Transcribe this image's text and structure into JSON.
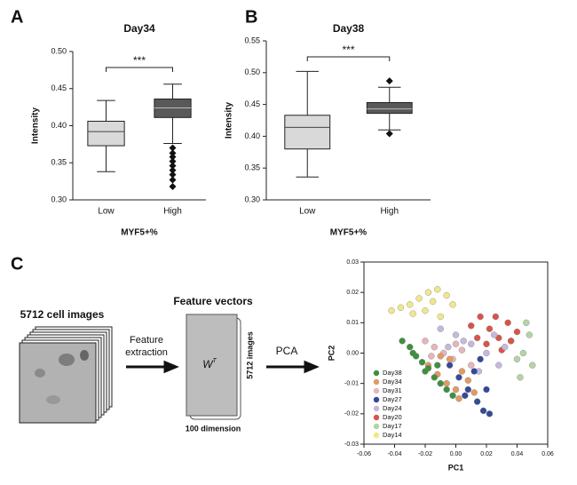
{
  "panels": [
    "A",
    "B",
    "C"
  ],
  "diagram": {
    "images_title": "5712 cell images",
    "arrow1": [
      "Feature",
      "extraction"
    ],
    "vectors_title": "Feature vectors",
    "matrix": [
      "W",
      "T"
    ],
    "side": "5712 images",
    "bottom": "100 dimension",
    "arrow2": "PCA"
  },
  "chart_data": [
    {
      "type": "box",
      "title": "Day34",
      "xlabel": "MYF5+%",
      "ylabel": "Intensity",
      "annotation": "***",
      "categories": [
        "Low",
        "High"
      ],
      "boxes": [
        {
          "whislo": 0.338,
          "q1": 0.373,
          "med": 0.392,
          "q3": 0.406,
          "whishi": 0.434,
          "fliers": [],
          "color": "#d9d9d9"
        },
        {
          "whislo": 0.376,
          "q1": 0.411,
          "med": 0.424,
          "q3": 0.436,
          "whishi": 0.456,
          "fliers": [
            0.37,
            0.363,
            0.358,
            0.352,
            0.346,
            0.34,
            0.334,
            0.327,
            0.318
          ],
          "color": "#595959"
        }
      ],
      "ylim": [
        0.3,
        0.5
      ],
      "yticks": [
        {
          "value": 0.3,
          "label": "0.30"
        },
        {
          "value": 0.35,
          "label": "0.35"
        },
        {
          "value": 0.4,
          "label": "0.40"
        },
        {
          "value": 0.45,
          "label": "0.45"
        },
        {
          "value": 0.5,
          "label": "0.50"
        }
      ]
    },
    {
      "type": "box",
      "title": "Day38",
      "xlabel": "MYF5+%",
      "ylabel": "Intensity",
      "annotation": "***",
      "categories": [
        "Low",
        "High"
      ],
      "boxes": [
        {
          "whislo": 0.336,
          "q1": 0.38,
          "med": 0.414,
          "q3": 0.433,
          "whishi": 0.502,
          "fliers": [],
          "color": "#d9d9d9"
        },
        {
          "whislo": 0.41,
          "q1": 0.436,
          "med": 0.443,
          "q3": 0.453,
          "whishi": 0.477,
          "fliers": [
            0.487,
            0.404
          ],
          "color": "#595959"
        }
      ],
      "ylim": [
        0.3,
        0.55
      ],
      "yticks": [
        {
          "value": 0.3,
          "label": "0.30"
        },
        {
          "value": 0.35,
          "label": "0.35"
        },
        {
          "value": 0.4,
          "label": "0.40"
        },
        {
          "value": 0.45,
          "label": "0.45"
        },
        {
          "value": 0.5,
          "label": "0.50"
        },
        {
          "value": 0.55,
          "label": "0.55"
        }
      ]
    },
    {
      "type": "scatter",
      "xlabel": "PC1",
      "ylabel": "PC2",
      "legend": "lower left",
      "xlim": [
        -0.06,
        0.06
      ],
      "xticks": [
        -0.06,
        -0.04,
        -0.02,
        {
          "value": 0,
          "label": "0.00"
        },
        0.02,
        0.04,
        0.06
      ],
      "ylim": [
        -0.03,
        0.03
      ],
      "yticks": [
        -0.03,
        -0.02,
        -0.01,
        {
          "value": 0,
          "label": "0.00"
        },
        0.01,
        0.02,
        0.03
      ],
      "series": [
        {
          "name": "Day38",
          "color": "#3f8f3f",
          "x": [
            -0.035,
            -0.03,
            -0.026,
            -0.022,
            -0.018,
            -0.014,
            -0.01,
            -0.006,
            -0.002,
            -0.028,
            -0.02,
            -0.012
          ],
          "values": [
            0.004,
            0.002,
            -0.001,
            -0.003,
            -0.005,
            -0.008,
            -0.01,
            -0.012,
            -0.014,
            0.0,
            -0.006,
            -0.004
          ]
        },
        {
          "name": "Day34",
          "color": "#e39a62",
          "x": [
            -0.018,
            -0.012,
            -0.006,
            0.0,
            0.004,
            0.008,
            -0.004,
            0.012,
            0.002,
            -0.01
          ],
          "values": [
            -0.004,
            -0.007,
            -0.01,
            -0.012,
            -0.006,
            -0.009,
            -0.002,
            -0.013,
            -0.015,
            -0.001
          ]
        },
        {
          "name": "Day31",
          "color": "#e8b4bc",
          "x": [
            -0.02,
            -0.014,
            -0.008,
            -0.002,
            0.004,
            0.01,
            -0.016,
            0.0
          ],
          "values": [
            0.004,
            0.002,
            0.0,
            -0.002,
            0.001,
            -0.004,
            -0.001,
            0.003
          ]
        },
        {
          "name": "Day27",
          "color": "#34499a",
          "x": [
            -0.004,
            0.002,
            0.008,
            0.014,
            0.018,
            0.022,
            0.012,
            0.006,
            0.02,
            0.016
          ],
          "values": [
            -0.004,
            -0.008,
            -0.012,
            -0.016,
            -0.019,
            -0.02,
            -0.006,
            -0.014,
            -0.012,
            -0.002
          ]
        },
        {
          "name": "Day24",
          "color": "#c4b9dd",
          "x": [
            -0.01,
            0.0,
            0.01,
            0.02,
            0.028,
            0.015,
            0.005,
            0.025,
            -0.005,
            0.032
          ],
          "values": [
            0.008,
            0.006,
            0.003,
            0.0,
            -0.004,
            -0.006,
            0.004,
            0.006,
            0.002,
            0.002
          ]
        },
        {
          "name": "Day20",
          "color": "#d9534a",
          "x": [
            0.01,
            0.016,
            0.022,
            0.028,
            0.034,
            0.04,
            0.02,
            0.03,
            0.026,
            0.036,
            0.014
          ],
          "values": [
            0.009,
            0.012,
            0.008,
            0.005,
            0.01,
            0.007,
            0.003,
            0.001,
            0.012,
            0.004,
            0.005
          ]
        },
        {
          "name": "Day17",
          "color": "#b3d4a4",
          "x": [
            0.036,
            0.04,
            0.044,
            0.048,
            0.05,
            0.042,
            0.046
          ],
          "values": [
            0.004,
            -0.002,
            0.0,
            0.006,
            -0.004,
            -0.008,
            0.01
          ]
        },
        {
          "name": "Day14",
          "color": "#efe78a",
          "x": [
            -0.042,
            -0.036,
            -0.03,
            -0.024,
            -0.018,
            -0.012,
            -0.006,
            -0.002,
            -0.02,
            -0.028,
            -0.01,
            -0.015
          ],
          "values": [
            0.014,
            0.015,
            0.016,
            0.018,
            0.02,
            0.021,
            0.019,
            0.016,
            0.014,
            0.013,
            0.012,
            0.017
          ]
        }
      ]
    }
  ]
}
